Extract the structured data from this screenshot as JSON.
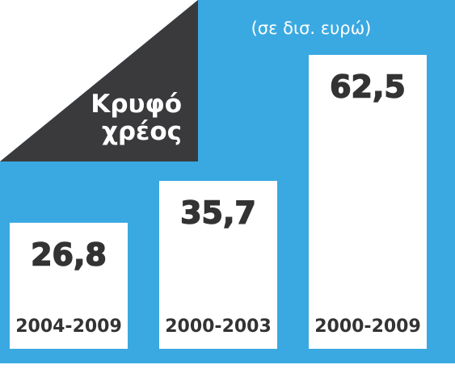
{
  "chart_data": {
    "type": "bar",
    "title": "Κρυφό χρέος",
    "subtitle": "(σε δισ. ευρώ)",
    "categories": [
      "2004-2009",
      "2000-2003",
      "2000-2009"
    ],
    "values": [
      26.8,
      35.7,
      62.5
    ],
    "value_labels": [
      "26,8",
      "35,7",
      "62,5"
    ],
    "color": "#ffffff"
  }
}
